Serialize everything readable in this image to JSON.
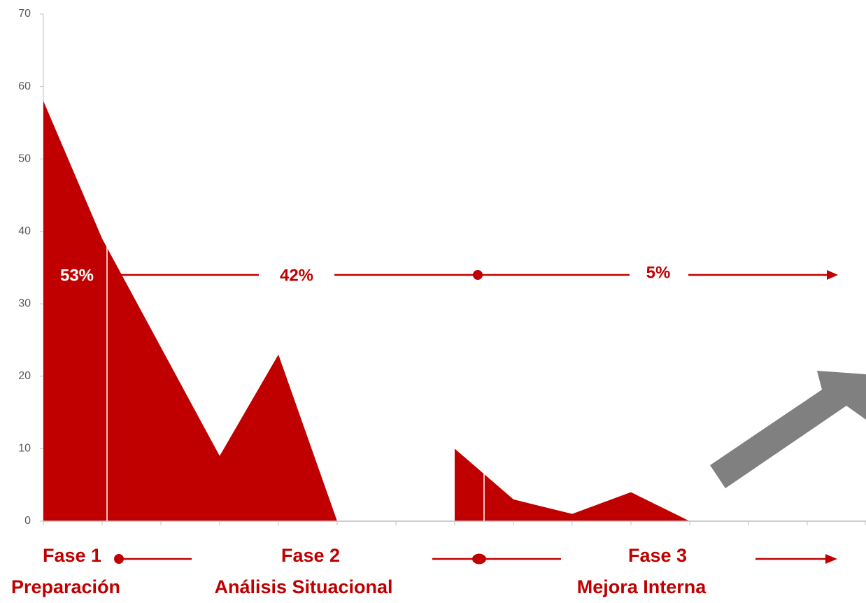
{
  "chart_data": {
    "type": "area",
    "x": [
      0,
      1,
      2,
      3,
      4,
      5,
      6,
      7,
      8,
      9,
      10,
      11,
      12,
      13
    ],
    "values": [
      58,
      39,
      24,
      9,
      23,
      0,
      null,
      10,
      3,
      1,
      4,
      0,
      null,
      null
    ],
    "ylim": [
      0,
      70
    ],
    "yticks": [
      0,
      10,
      20,
      30,
      40,
      50,
      60,
      70
    ],
    "grid": false,
    "legend": "none",
    "color": "#c00000",
    "annotations": {
      "percentages": [
        "53%",
        "42%",
        "5%"
      ]
    },
    "phases": [
      {
        "title": "Fase 1",
        "name": "Preparación"
      },
      {
        "title": "Fase 2",
        "name": "Análisis Situacional"
      },
      {
        "title": "Fase 3",
        "name": "Mejora Interna"
      }
    ]
  },
  "colors": {
    "accent": "#c00000",
    "axis": "#bfbfbf",
    "arrow_gray": "#808080"
  },
  "icons": [
    "trend-arrow-icon"
  ]
}
